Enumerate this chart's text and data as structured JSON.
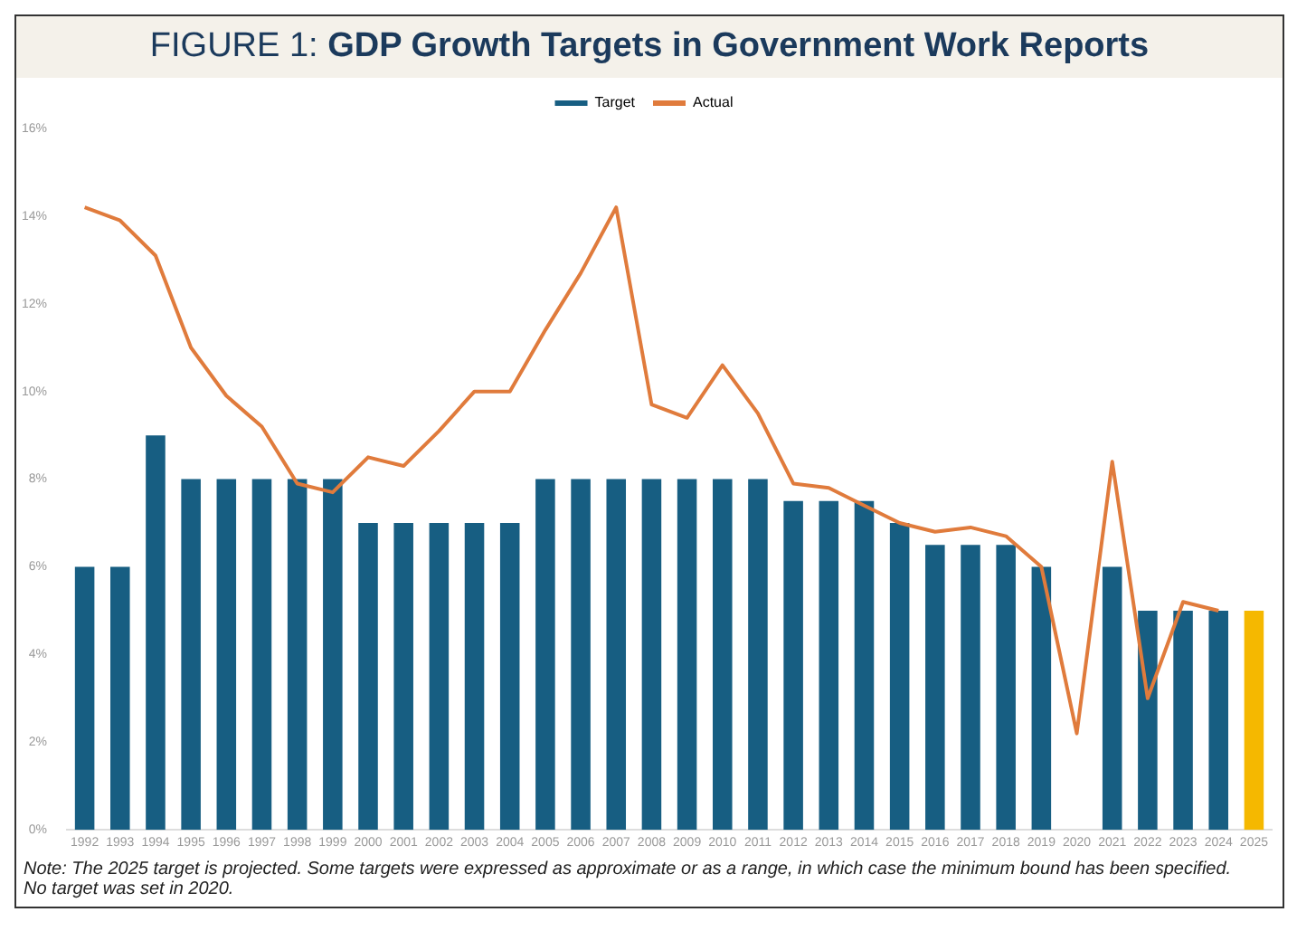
{
  "chart_data": {
    "type": "bar",
    "title": "FIGURE 1: GDP Growth Targets in Government Work Reports",
    "categories": [
      "1992",
      "1993",
      "1994",
      "1995",
      "1996",
      "1997",
      "1998",
      "1999",
      "2000",
      "2001",
      "2002",
      "2003",
      "2004",
      "2005",
      "2006",
      "2007",
      "2008",
      "2009",
      "2010",
      "2011",
      "2012",
      "2013",
      "2014",
      "2015",
      "2016",
      "2017",
      "2018",
      "2019",
      "2020",
      "2021",
      "2022",
      "2023",
      "2024",
      "2025"
    ],
    "series": [
      {
        "name": "Target",
        "color": "#175e82",
        "colors": [
          "#175e82",
          "#175e82",
          "#175e82",
          "#175e82",
          "#175e82",
          "#175e82",
          "#175e82",
          "#175e82",
          "#175e82",
          "#175e82",
          "#175e82",
          "#175e82",
          "#175e82",
          "#175e82",
          "#175e82",
          "#175e82",
          "#175e82",
          "#175e82",
          "#175e82",
          "#175e82",
          "#175e82",
          "#175e82",
          "#175e82",
          "#175e82",
          "#175e82",
          "#175e82",
          "#175e82",
          "#175e82",
          "#175e82",
          "#175e82",
          "#175e82",
          "#175e82",
          "#175e82",
          "#f5b800"
        ],
        "values": [
          6,
          6,
          9,
          8,
          8,
          8,
          8,
          8,
          7,
          7,
          7,
          7,
          7,
          8,
          8,
          8,
          8,
          8,
          8,
          8,
          7.5,
          7.5,
          7.5,
          7,
          6.5,
          6.5,
          6.5,
          6,
          null,
          6,
          5,
          5,
          5,
          5
        ]
      },
      {
        "name": "Actual",
        "type": "line",
        "color": "#e07b3c",
        "values": [
          14.2,
          13.9,
          13.1,
          11.0,
          9.9,
          9.2,
          7.9,
          7.7,
          8.5,
          8.3,
          9.1,
          10.0,
          10.0,
          11.4,
          12.7,
          14.2,
          9.7,
          9.4,
          10.6,
          9.5,
          7.9,
          7.8,
          7.4,
          7.0,
          6.8,
          6.9,
          6.7,
          6.0,
          2.2,
          8.4,
          3.0,
          5.2,
          5.0,
          null
        ]
      }
    ],
    "ylim": [
      0,
      16
    ],
    "yticks": [
      {
        "value": 0,
        "label": "0%"
      },
      {
        "value": 2,
        "label": "2%"
      },
      {
        "value": 4,
        "label": "4%"
      },
      {
        "value": 6,
        "label": "6%"
      },
      {
        "value": 8,
        "label": "8%"
      },
      {
        "value": 10,
        "label": "10%"
      },
      {
        "value": 12,
        "label": "12%"
      },
      {
        "value": 14,
        "label": "14%"
      },
      {
        "value": 16,
        "label": "16%"
      }
    ],
    "grid": false,
    "legend": "top",
    "marker": "none",
    "line_style": "solid",
    "annotations": [
      "Note: The 2025 target is projected. Some targets were expressed as approximate or as a range, in which case the minimum bound has been specified.",
      "No target was set in 2020."
    ]
  }
}
